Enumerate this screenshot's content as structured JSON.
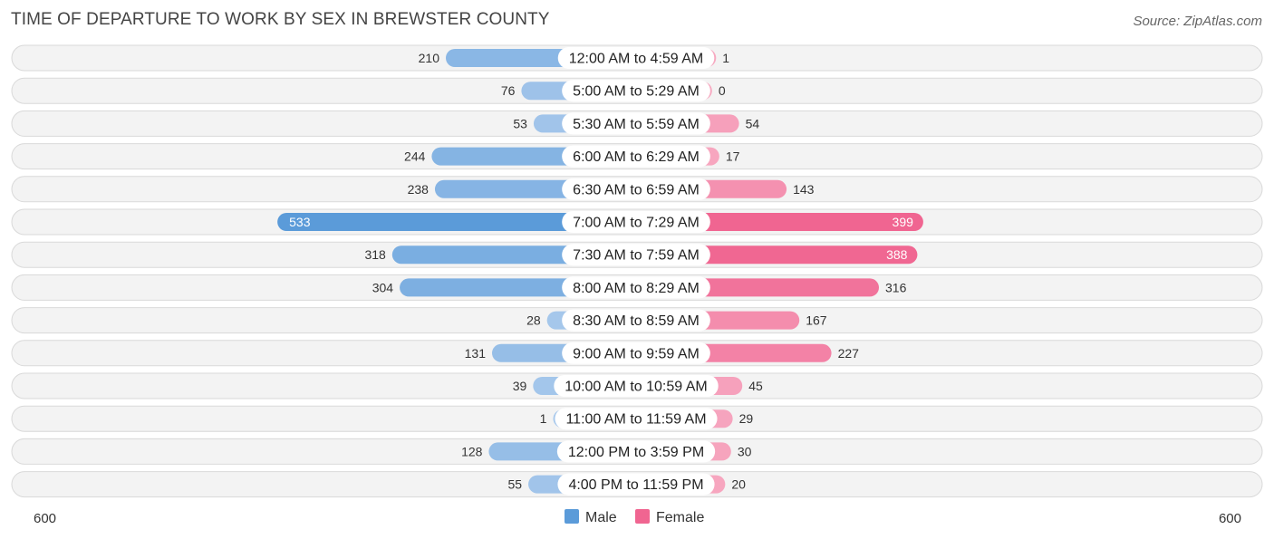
{
  "title": "TIME OF DEPARTURE TO WORK BY SEX IN BREWSTER COUNTY",
  "source": "Source: ZipAtlas.com",
  "colors": {
    "male_dark": "#5b9bd9",
    "male_light": "#a9c9ec",
    "female_dark": "#f06591",
    "female_light": "#f7a9c1",
    "row_bg": "#f3f3f3"
  },
  "chart_data": {
    "type": "bar",
    "orientation": "horizontal-diverging",
    "categories": [
      "12:00 AM to 4:59 AM",
      "5:00 AM to 5:29 AM",
      "5:30 AM to 5:59 AM",
      "6:00 AM to 6:29 AM",
      "6:30 AM to 6:59 AM",
      "7:00 AM to 7:29 AM",
      "7:30 AM to 7:59 AM",
      "8:00 AM to 8:29 AM",
      "8:30 AM to 8:59 AM",
      "9:00 AM to 9:59 AM",
      "10:00 AM to 10:59 AM",
      "11:00 AM to 11:59 AM",
      "12:00 PM to 3:59 PM",
      "4:00 PM to 11:59 PM"
    ],
    "series": [
      {
        "name": "Male",
        "values": [
          210,
          76,
          53,
          244,
          238,
          533,
          318,
          304,
          28,
          131,
          39,
          1,
          128,
          55
        ]
      },
      {
        "name": "Female",
        "values": [
          1,
          0,
          54,
          17,
          143,
          399,
          388,
          316,
          167,
          227,
          45,
          29,
          30,
          20
        ]
      }
    ],
    "axis": {
      "left_label": "600",
      "right_label": "600",
      "max": 600
    },
    "legend": {
      "position": "bottom-center",
      "items": [
        "Male",
        "Female"
      ]
    },
    "grid": false
  }
}
